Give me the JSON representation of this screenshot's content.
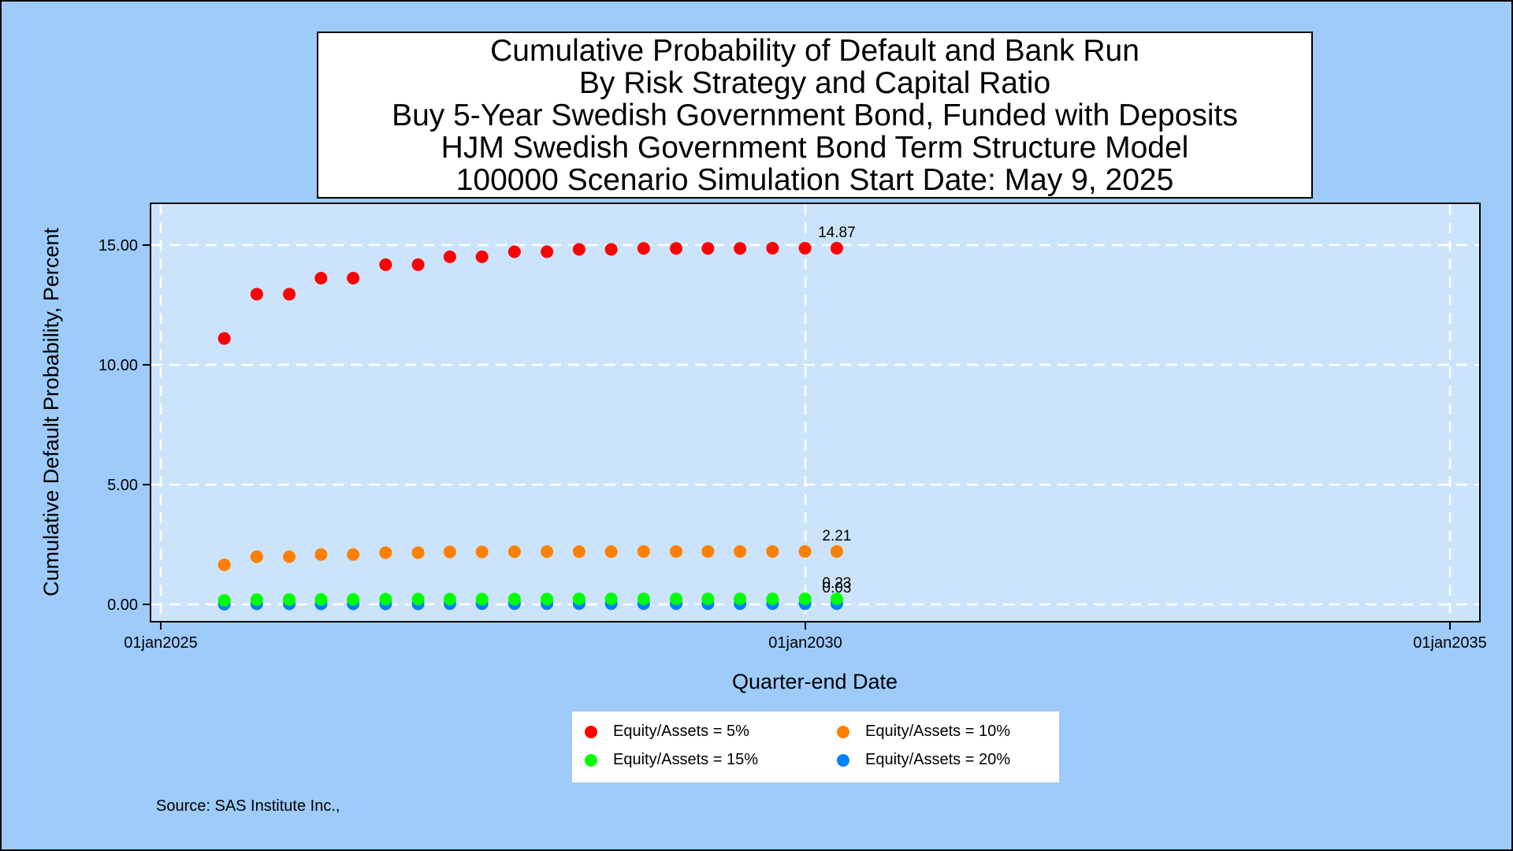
{
  "chart_data": {
    "type": "scatter",
    "title_lines": [
      "Cumulative Probability of Default and Bank Run",
      "By Risk Strategy and Capital Ratio",
      "Buy 5-Year Swedish Government Bond, Funded with Deposits",
      "HJM Swedish Government Bond Term Structure Model",
      "100000 Scenario Simulation Start Date: May 9, 2025"
    ],
    "xlabel": "Quarter-end Date",
    "ylabel": "Cumulative Default Probability, Percent",
    "xlim": [
      "2025-01-01",
      "2035-01-01"
    ],
    "ylim": [
      0,
      15
    ],
    "x_ticks": [
      {
        "date": "2025-01-01",
        "label": "01jan2025"
      },
      {
        "date": "2030-01-01",
        "label": "01jan2030"
      },
      {
        "date": "2035-01-01",
        "label": "01jan2035"
      }
    ],
    "y_ticks": [
      {
        "value": 0,
        "label": "0.00"
      },
      {
        "value": 5,
        "label": "5.00"
      },
      {
        "value": 10,
        "label": "10.00"
      },
      {
        "value": 15,
        "label": "15.00"
      }
    ],
    "grid": true,
    "legend_position": "bottom",
    "x": [
      "2025-06-30",
      "2025-09-30",
      "2025-12-31",
      "2026-03-31",
      "2026-06-30",
      "2026-09-30",
      "2026-12-31",
      "2027-03-31",
      "2027-06-30",
      "2027-09-30",
      "2027-12-31",
      "2028-03-31",
      "2028-06-30",
      "2028-09-30",
      "2028-12-31",
      "2029-03-31",
      "2029-06-30",
      "2029-09-30",
      "2029-12-31",
      "2030-03-31"
    ],
    "series": [
      {
        "name": "Equity/Assets = 5%",
        "color": "#ff0000",
        "values": [
          11.1,
          12.95,
          12.95,
          13.62,
          13.62,
          14.18,
          14.18,
          14.51,
          14.51,
          14.72,
          14.72,
          14.82,
          14.82,
          14.86,
          14.86,
          14.86,
          14.86,
          14.87,
          14.87,
          14.87
        ],
        "end_label": "14.87"
      },
      {
        "name": "Equity/Assets = 10%",
        "color": "#ff8000",
        "values": [
          1.65,
          1.99,
          1.99,
          2.08,
          2.08,
          2.16,
          2.16,
          2.19,
          2.19,
          2.2,
          2.2,
          2.2,
          2.2,
          2.21,
          2.21,
          2.21,
          2.21,
          2.21,
          2.21,
          2.21
        ],
        "end_label": "2.21"
      },
      {
        "name": "Equity/Assets = 15%",
        "color": "#00ff00",
        "values": [
          0.17,
          0.2,
          0.2,
          0.21,
          0.21,
          0.22,
          0.22,
          0.22,
          0.22,
          0.22,
          0.22,
          0.23,
          0.23,
          0.23,
          0.23,
          0.23,
          0.23,
          0.23,
          0.23,
          0.23
        ],
        "end_label": "0.23"
      },
      {
        "name": "Equity/Assets = 20%",
        "color": "#0080ff",
        "values": [
          0.01,
          0.02,
          0.02,
          0.02,
          0.02,
          0.02,
          0.02,
          0.03,
          0.03,
          0.03,
          0.03,
          0.03,
          0.03,
          0.03,
          0.03,
          0.03,
          0.03,
          0.03,
          0.03,
          0.03
        ],
        "end_label": "0.03"
      }
    ]
  },
  "source_note": "Source: SAS Institute Inc.,"
}
